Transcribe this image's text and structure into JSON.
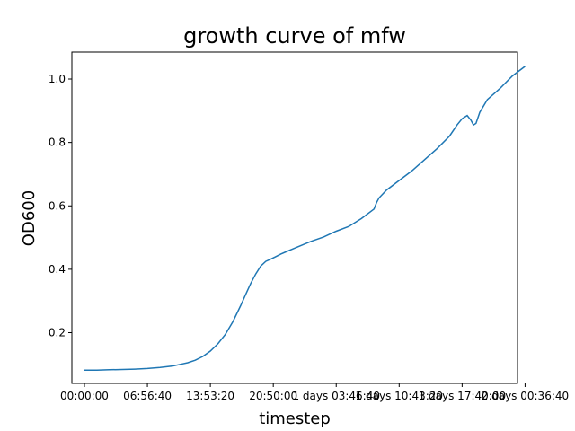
{
  "chart_data": {
    "type": "line",
    "title": "growth curve of mfw",
    "xlabel": "timestep",
    "ylabel": "OD600",
    "grid": false,
    "legend": "none",
    "line_color": "#1f77b4",
    "x_unit": "seconds",
    "xlim": [
      -5000,
      172000
    ],
    "ylim": [
      0.04,
      1.085
    ],
    "x_ticks": [
      {
        "value": 0,
        "label": "00:00:00"
      },
      {
        "value": 25000,
        "label": "06:56:40"
      },
      {
        "value": 50000,
        "label": "13:53:20"
      },
      {
        "value": 75000,
        "label": "20:50:00"
      },
      {
        "value": 100000,
        "label": "1 days 03:46:40"
      },
      {
        "value": 125000,
        "label": "1 days 10:43:20"
      },
      {
        "value": 150000,
        "label": "1 days 17:40:00"
      },
      {
        "value": 175000,
        "label": "2 days 00:36:40"
      }
    ],
    "y_ticks": [
      {
        "value": 0.2,
        "label": "0.2"
      },
      {
        "value": 0.4,
        "label": "0.4"
      },
      {
        "value": 0.6,
        "label": "0.6"
      },
      {
        "value": 0.8,
        "label": "0.8"
      },
      {
        "value": 1.0,
        "label": "1.0"
      }
    ],
    "series": [
      {
        "x": [
          0,
          5000,
          10000,
          15000,
          20000,
          25000,
          30000,
          35000,
          38000,
          41000,
          44000,
          47000,
          50000,
          53000,
          56000,
          59000,
          62000,
          64000,
          66000,
          68000,
          70000,
          72000,
          74000,
          76000,
          78000,
          80000,
          83000,
          86000,
          90000,
          95000,
          100000,
          105000,
          110000,
          115000,
          116000,
          117000,
          120000,
          125000,
          130000,
          135000,
          140000,
          145000,
          148000,
          150000,
          152000,
          153500,
          154500,
          155500,
          157000,
          160000,
          165000,
          170000,
          175000
        ],
        "y": [
          0.082,
          0.082,
          0.083,
          0.084,
          0.085,
          0.087,
          0.09,
          0.095,
          0.1,
          0.105,
          0.113,
          0.125,
          0.142,
          0.165,
          0.195,
          0.235,
          0.285,
          0.32,
          0.355,
          0.385,
          0.41,
          0.425,
          0.432,
          0.44,
          0.448,
          0.455,
          0.465,
          0.475,
          0.488,
          0.502,
          0.52,
          0.535,
          0.56,
          0.59,
          0.61,
          0.625,
          0.65,
          0.68,
          0.71,
          0.745,
          0.78,
          0.82,
          0.855,
          0.875,
          0.885,
          0.87,
          0.855,
          0.86,
          0.895,
          0.935,
          0.97,
          1.01,
          1.04
        ]
      }
    ]
  }
}
